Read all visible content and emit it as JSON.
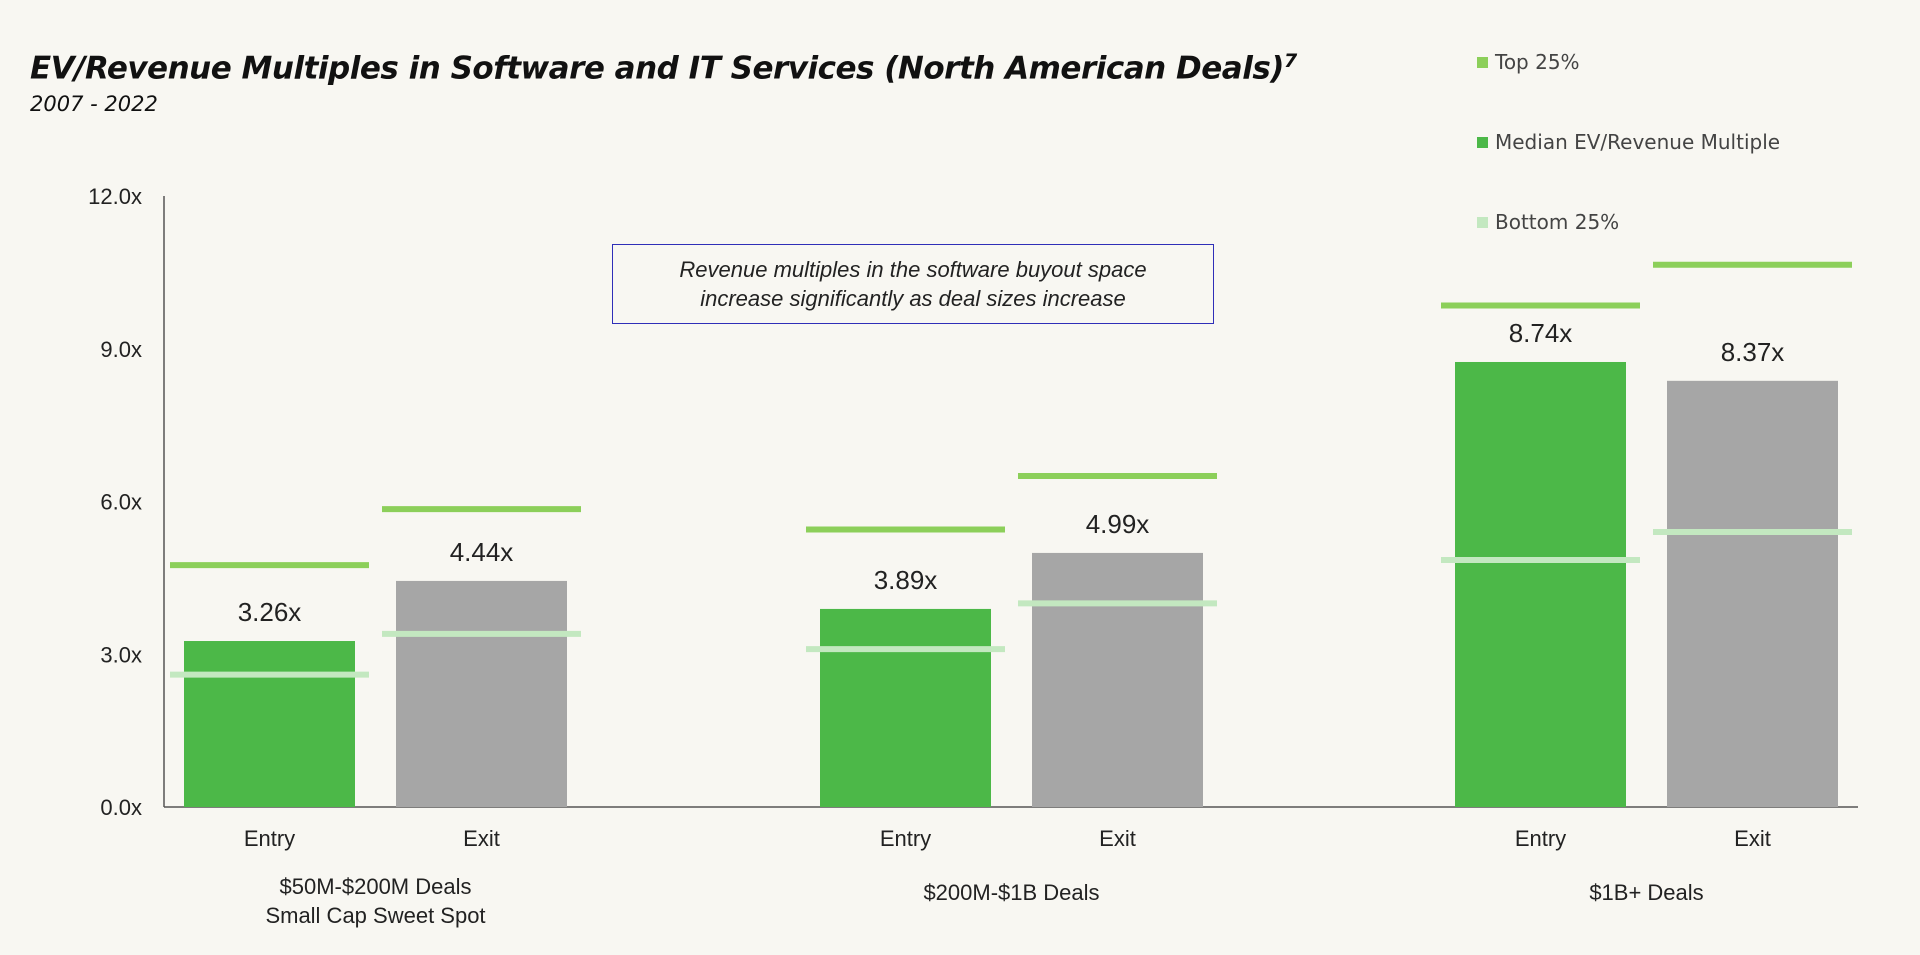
{
  "header": {
    "title": "EV/Revenue Multiples in Software and IT Services (North American Deals)",
    "title_footnote": "7",
    "subtitle": "2007 - 2022"
  },
  "legend": {
    "items": [
      {
        "label": "Top 25%",
        "color": "#8ccf5a"
      },
      {
        "label": "Median EV/Revenue Multiple",
        "color": "#4cb848"
      },
      {
        "label": "Bottom 25%",
        "color": "#c3e8c0"
      }
    ]
  },
  "callout": {
    "line1": "Revenue multiples in the software buyout space",
    "line2": "increase significantly as deal sizes increase"
  },
  "colors": {
    "entry_bar": "#4cb848",
    "exit_bar": "#a6a6a6",
    "top_quartile": "#8ccf5a",
    "bottom_quartile": "#c3e8c0",
    "axis": "#555555"
  },
  "chart_data": {
    "type": "bar",
    "y_ticks": [
      "0.0x",
      "3.0x",
      "6.0x",
      "9.0x",
      "12.0x"
    ],
    "ylim": [
      0,
      12
    ],
    "groups": [
      {
        "label_lines": [
          "$50M-$200M Deals",
          "Small Cap Sweet Spot"
        ],
        "bars": [
          {
            "category": "Entry",
            "median": 3.26,
            "label": "3.26x",
            "top25": 4.75,
            "bottom25": 2.6
          },
          {
            "category": "Exit",
            "median": 4.44,
            "label": "4.44x",
            "top25": 5.85,
            "bottom25": 3.4
          }
        ]
      },
      {
        "label_lines": [
          "$200M-$1B Deals"
        ],
        "bars": [
          {
            "category": "Entry",
            "median": 3.89,
            "label": "3.89x",
            "top25": 5.45,
            "bottom25": 3.1
          },
          {
            "category": "Exit",
            "median": 4.99,
            "label": "4.99x",
            "top25": 6.5,
            "bottom25": 4.0
          }
        ]
      },
      {
        "label_lines": [
          "$1B+ Deals"
        ],
        "bars": [
          {
            "category": "Entry",
            "median": 8.74,
            "label": "8.74x",
            "top25": 9.85,
            "bottom25": 4.85
          },
          {
            "category": "Exit",
            "median": 8.37,
            "label": "8.37x",
            "top25": 10.65,
            "bottom25": 5.4
          }
        ]
      }
    ]
  }
}
